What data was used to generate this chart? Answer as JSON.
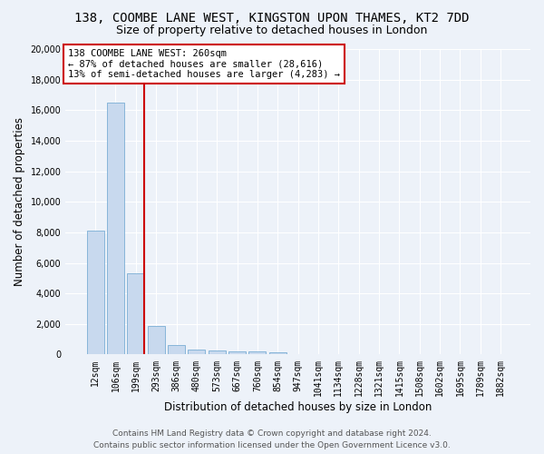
{
  "title_line1": "138, COOMBE LANE WEST, KINGSTON UPON THAMES, KT2 7DD",
  "title_line2": "Size of property relative to detached houses in London",
  "xlabel": "Distribution of detached houses by size in London",
  "ylabel": "Number of detached properties",
  "bar_color": "#c8d9ee",
  "bar_edge_color": "#7aadd4",
  "categories": [
    "12sqm",
    "106sqm",
    "199sqm",
    "293sqm",
    "386sqm",
    "480sqm",
    "573sqm",
    "667sqm",
    "760sqm",
    "854sqm",
    "947sqm",
    "1041sqm",
    "1134sqm",
    "1228sqm",
    "1321sqm",
    "1415sqm",
    "1508sqm",
    "1602sqm",
    "1695sqm",
    "1789sqm",
    "1882sqm"
  ],
  "values": [
    8100,
    16500,
    5300,
    1850,
    650,
    350,
    270,
    220,
    190,
    160,
    0,
    0,
    0,
    0,
    0,
    0,
    0,
    0,
    0,
    0,
    0
  ],
  "ylim": [
    0,
    20000
  ],
  "yticks": [
    0,
    2000,
    4000,
    6000,
    8000,
    10000,
    12000,
    14000,
    16000,
    18000,
    20000
  ],
  "annotation_text": "138 COOMBE LANE WEST: 260sqm\n← 87% of detached houses are smaller (28,616)\n13% of semi-detached houses are larger (4,283) →",
  "vline_color": "#cc0000",
  "annotation_box_color": "#ffffff",
  "annotation_box_edge": "#cc0000",
  "footer_line1": "Contains HM Land Registry data © Crown copyright and database right 2024.",
  "footer_line2": "Contains public sector information licensed under the Open Government Licence v3.0.",
  "background_color": "#edf2f9",
  "grid_color": "#ffffff",
  "title_fontsize": 10,
  "subtitle_fontsize": 9,
  "axis_label_fontsize": 8.5,
  "tick_fontsize": 7,
  "annotation_fontsize": 7.5,
  "footer_fontsize": 6.5,
  "vline_bar_index": 2
}
